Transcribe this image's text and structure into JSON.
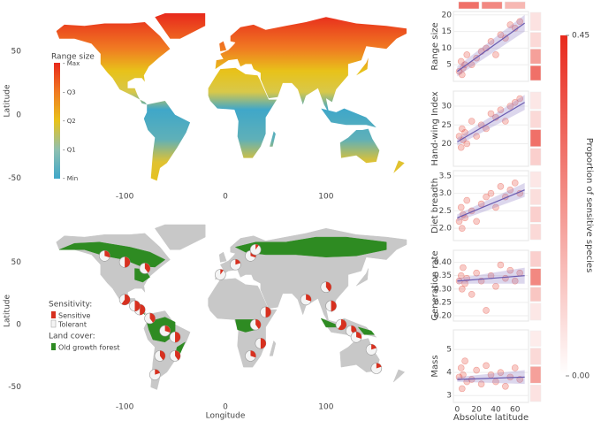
{
  "chart_data": [
    {
      "type": "map",
      "ylabel": "Latitude",
      "xlim": [
        -180,
        180
      ],
      "ylim": [
        -58,
        80
      ],
      "xticks": [
        -100,
        0,
        100
      ],
      "yticks": [
        -50,
        0,
        50
      ],
      "legend": {
        "title": "Range size",
        "labels": [
          "- Max",
          "- Q3",
          "- Q2",
          "- Q1",
          "- Min"
        ]
      }
    },
    {
      "type": "map",
      "xlabel": "Longitude",
      "ylabel": "Latitude",
      "xlim": [
        -180,
        180
      ],
      "ylim": [
        -58,
        80
      ],
      "xticks": [
        -100,
        0,
        100
      ],
      "yticks": [
        -50,
        0,
        50
      ],
      "legend": {
        "sensitivity_title": "Sensitivity:",
        "sensitive": "Sensitive",
        "tolerant": "Tolerant",
        "land_cover_title": "Land cover:",
        "forest": "Old growth forest"
      },
      "sites": {
        "lon": [
          -120,
          -100,
          -80,
          -100,
          -85,
          -75,
          -60,
          -50,
          -65,
          -70,
          -5,
          10,
          25,
          30,
          40,
          30,
          25,
          35,
          80,
          100,
          105,
          115,
          125,
          130,
          145,
          150,
          -90,
          -50
        ],
        "lat": [
          55,
          50,
          45,
          20,
          12,
          5,
          -5,
          -10,
          -25,
          -40,
          40,
          48,
          55,
          60,
          10,
          0,
          -25,
          -15,
          20,
          30,
          15,
          0,
          -5,
          -10,
          -20,
          -35,
          15,
          -25
        ],
        "values": [
          0.3,
          0.5,
          0.4,
          0.6,
          0.5,
          0.4,
          0.3,
          0.5,
          0.4,
          0.2,
          0.1,
          0.2,
          0.3,
          0.1,
          0.5,
          0.4,
          0.3,
          0.5,
          0.3,
          0.4,
          0.5,
          0.6,
          0.4,
          0.3,
          0.2,
          0.2,
          0.5,
          0.4
        ]
      }
    },
    {
      "type": "scatter",
      "ylabel": "Range size",
      "color": "#e8574a",
      "xlim": [
        -4,
        74
      ],
      "ylim": [
        0,
        21
      ],
      "yticks": [
        5,
        10,
        15,
        20
      ],
      "x": [
        2,
        4,
        5,
        6,
        8,
        10,
        15,
        20,
        25,
        30,
        35,
        40,
        45,
        50,
        55,
        60,
        65
      ],
      "values": [
        3,
        6,
        2,
        4,
        5,
        8,
        5,
        7,
        9,
        10,
        12,
        8,
        14,
        13,
        17,
        16,
        18
      ],
      "fit": {
        "x": [
          0,
          70
        ],
        "y": [
          3,
          17.5
        ],
        "lower": [
          1.5,
          15
        ],
        "upper": [
          4.5,
          20
        ]
      },
      "side_bins": {
        "edges": [
          0,
          5,
          10,
          15,
          21
        ],
        "proportions": [
          0.3,
          0.2,
          0.08,
          0.06
        ]
      }
    },
    {
      "type": "scatter",
      "ylabel": "Hand-wing Index",
      "color": "#e8574a",
      "xlim": [
        -4,
        74
      ],
      "ylim": [
        14,
        34
      ],
      "yticks": [
        20,
        25,
        30
      ],
      "x": [
        2,
        4,
        5,
        6,
        8,
        10,
        15,
        20,
        25,
        30,
        35,
        40,
        45,
        50,
        55,
        60,
        65
      ],
      "values": [
        22,
        19,
        24,
        21,
        23,
        20,
        26,
        22,
        25,
        24,
        28,
        27,
        29,
        26,
        30,
        31,
        32
      ],
      "fit": {
        "x": [
          0,
          70
        ],
        "y": [
          20.5,
          31
        ],
        "lower": [
          19.5,
          29
        ],
        "upper": [
          21.5,
          33
        ]
      },
      "side_bins": {
        "edges": [
          14,
          19,
          24,
          29,
          34
        ],
        "proportions": [
          0.1,
          0.3,
          0.08,
          0.05
        ]
      }
    },
    {
      "type": "scatter",
      "ylabel": "Diet breadth",
      "color": "#e8574a",
      "xlim": [
        -4,
        74
      ],
      "ylim": [
        1.65,
        3.65
      ],
      "yticks": [
        {
          "value": 2,
          "label": "2.0"
        },
        2.5,
        {
          "value": 3,
          "label": "3.0"
        },
        3.5
      ],
      "x": [
        2,
        4,
        5,
        6,
        8,
        10,
        15,
        20,
        25,
        30,
        35,
        40,
        45,
        50,
        55,
        60,
        65
      ],
      "values": [
        2.2,
        2.6,
        2.0,
        2.4,
        2.3,
        2.8,
        2.5,
        2.2,
        2.7,
        2.9,
        3.0,
        2.6,
        3.2,
        2.9,
        3.1,
        3.3,
        3.0
      ],
      "fit": {
        "x": [
          0,
          70
        ],
        "y": [
          2.3,
          3.1
        ],
        "lower": [
          2.2,
          2.9
        ],
        "upper": [
          2.4,
          3.3
        ]
      },
      "side_bins": {
        "edges": [
          1.65,
          2.15,
          2.65,
          3.15,
          3.65
        ],
        "proportions": [
          0.08,
          0.1,
          0.07,
          0.05
        ]
      }
    },
    {
      "type": "scatter",
      "ylabel": "Generation rate",
      "color": "#e8574a",
      "xlim": [
        -4,
        74
      ],
      "ylim": [
        0.18,
        0.445
      ],
      "yticks": [
        {
          "value": 0.2,
          "label": "0.20"
        },
        0.25,
        {
          "value": 0.3,
          "label": "0.30"
        },
        0.35,
        {
          "value": 0.4,
          "label": "0.40"
        }
      ],
      "x": [
        2,
        4,
        5,
        6,
        8,
        10,
        15,
        20,
        25,
        30,
        35,
        40,
        45,
        50,
        55,
        60,
        65
      ],
      "values": [
        0.33,
        0.35,
        0.3,
        0.38,
        0.32,
        0.34,
        0.28,
        0.36,
        0.33,
        0.22,
        0.35,
        0.31,
        0.39,
        0.34,
        0.37,
        0.33,
        0.36
      ],
      "fit": {
        "x": [
          0,
          70
        ],
        "y": [
          0.33,
          0.35
        ],
        "lower": [
          0.32,
          0.32
        ],
        "upper": [
          0.34,
          0.38
        ]
      },
      "side_bins": {
        "edges": [
          0.18,
          0.25,
          0.31,
          0.38,
          0.445
        ],
        "proportions": [
          0.05,
          0.12,
          0.25,
          0.1
        ]
      }
    },
    {
      "type": "scatter",
      "ylabel": "Mass",
      "xlabel": "Absolute latitude",
      "color": "#e8574a",
      "xlim": [
        -4,
        74
      ],
      "ylim": [
        2.7,
        5.85
      ],
      "yticks": [
        3,
        4,
        5
      ],
      "xticks": [
        0,
        20,
        40,
        60
      ],
      "x": [
        2,
        4,
        5,
        6,
        8,
        10,
        15,
        20,
        25,
        30,
        35,
        40,
        45,
        50,
        55,
        60,
        65
      ],
      "values": [
        3.8,
        4.2,
        3.3,
        3.9,
        4.5,
        3.6,
        3.7,
        4.1,
        3.5,
        4.3,
        3.9,
        3.6,
        4.0,
        3.4,
        3.8,
        4.2,
        3.7
      ],
      "fit": {
        "x": [
          0,
          70
        ],
        "y": [
          3.7,
          3.8
        ],
        "lower": [
          3.6,
          3.5
        ],
        "upper": [
          3.8,
          4.1
        ]
      },
      "side_bins": {
        "edges": [
          2.7,
          3.5,
          4.3,
          5.1,
          5.85
        ],
        "proportions": [
          0.06,
          0.2,
          0.08,
          0.04
        ]
      }
    }
  ],
  "top_bins": {
    "edges": [
      0,
      24,
      48,
      72
    ],
    "proportions": [
      0.3,
      0.25,
      0.15
    ]
  },
  "colorbar": {
    "title": "Proportion of sensitive species",
    "lim": [
      0,
      0.45
    ],
    "ticks": [
      {
        "value": 0,
        "label": "0.00"
      },
      0.45
    ],
    "colors": [
      "#ffffff",
      "#e8291c"
    ]
  }
}
